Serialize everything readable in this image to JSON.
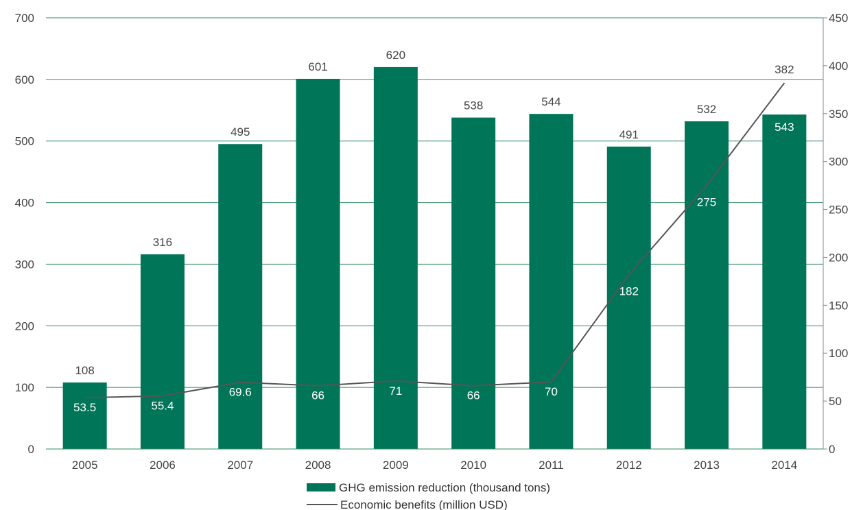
{
  "chart_data": {
    "type": "bar",
    "categories": [
      "2005",
      "2006",
      "2007",
      "2008",
      "2009",
      "2010",
      "2011",
      "2012",
      "2013",
      "2014"
    ],
    "series": [
      {
        "name": "GHG emission reduction (thousand tons)",
        "type": "bar",
        "axis": "left",
        "color": "#007558",
        "values": [
          108,
          316,
          495,
          601,
          620,
          538,
          544,
          491,
          532,
          543
        ]
      },
      {
        "name": "Economic benefits (million USD)",
        "type": "line",
        "axis": "right",
        "color": "#555555",
        "values": [
          53.5,
          55.4,
          69.6,
          66,
          71,
          66,
          70,
          182,
          275,
          382
        ],
        "labels": [
          "53.5",
          "55.4",
          "69.6",
          "66",
          "71",
          "66",
          "70",
          "182",
          "275",
          "382"
        ]
      }
    ],
    "left_axis": {
      "ylim": [
        0,
        700
      ],
      "ticks": [
        "0",
        "100",
        "200",
        "300",
        "400",
        "500",
        "600",
        "700"
      ]
    },
    "right_axis": {
      "ylim": [
        0,
        450
      ],
      "ticks": [
        "0",
        "50",
        "100",
        "150",
        "200",
        "250",
        "300",
        "350",
        "400",
        "450"
      ]
    },
    "grid": true,
    "legend": "bottom-center",
    "title": "",
    "xlabel": "",
    "ylabel": ""
  }
}
